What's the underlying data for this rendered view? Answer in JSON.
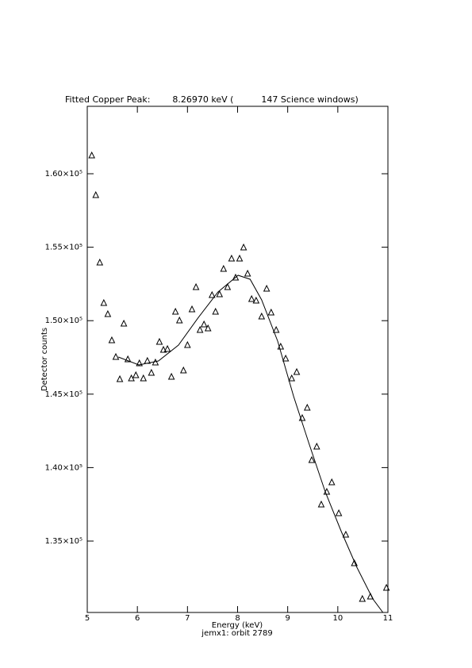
{
  "chart_data": {
    "type": "scatter",
    "title": "Fitted Copper Peak:        8.26970 keV (          147 Science windows)",
    "x_label": "Energy (keV)",
    "subtitle": "jemx1: orbit 2789",
    "y_label": "Detector counts",
    "xlim": [
      5,
      11
    ],
    "xticks": [
      5,
      6,
      7,
      8,
      9,
      10,
      11
    ],
    "ylim": [
      130140,
      164590
    ],
    "yticks": [
      {
        "value": 135000,
        "label": "1.35×10⁵"
      },
      {
        "value": 140000,
        "label": "1.40×10⁵"
      },
      {
        "value": 145000,
        "label": "1.45×10⁵"
      },
      {
        "value": 150000,
        "label": "1.50×10⁵"
      },
      {
        "value": 155000,
        "label": "1.55×10⁵"
      },
      {
        "value": 160000,
        "label": "1.60×10⁵"
      }
    ],
    "grid": false,
    "series": [
      {
        "marker": "triangle",
        "color": "#000000",
        "x": [
          5.09,
          5.17,
          5.25,
          5.33,
          5.41,
          5.49,
          5.57,
          5.65,
          5.73,
          5.81,
          5.88,
          5.97,
          6.04,
          6.12,
          6.2,
          6.28,
          6.36,
          6.44,
          6.52,
          6.6,
          6.68,
          6.76,
          6.84,
          6.92,
          7.0,
          7.09,
          7.17,
          7.25,
          7.33,
          7.41,
          7.49,
          7.56,
          7.64,
          7.72,
          7.8,
          7.88,
          7.96,
          8.04,
          8.12,
          8.2,
          8.28,
          8.37,
          8.48,
          8.58,
          8.67,
          8.77,
          8.86,
          8.96,
          9.08,
          9.18,
          9.29,
          9.39,
          9.48,
          9.58,
          9.67,
          9.78,
          9.88,
          10.02,
          10.16,
          10.33,
          10.49,
          10.65,
          10.97
        ],
        "values": [
          161244,
          158544,
          153954,
          151200,
          150444,
          148662,
          147528,
          146016,
          149796,
          147366,
          146070,
          146286,
          147096,
          146070,
          147258,
          146448,
          147150,
          148554,
          148014,
          148068,
          146178,
          150606,
          150012,
          146610,
          148338,
          150768,
          152280,
          149364,
          149742,
          149472,
          151740,
          150606,
          151794,
          153522,
          152280,
          154224,
          152928,
          154224,
          154980,
          153198,
          151470,
          151362,
          150282,
          152172,
          150552,
          149364,
          148230,
          147420,
          146070,
          146502,
          143370,
          144072,
          140508,
          141426,
          137484,
          138348,
          138996,
          136890,
          135432,
          133488,
          131058,
          131220,
          131814
        ]
      },
      {
        "marker": "line",
        "color": "#000000",
        "x": [
          5.62,
          6.03,
          6.42,
          6.82,
          7.22,
          7.61,
          8.01,
          8.25,
          8.48,
          8.8,
          9.12,
          9.43,
          9.75,
          10.07,
          10.38,
          10.7,
          10.9
        ],
        "values": [
          147528,
          146988,
          147258,
          148338,
          150228,
          151956,
          153090,
          152820,
          151416,
          148608,
          144828,
          141588,
          138348,
          135648,
          133218,
          131058,
          130140
        ]
      }
    ]
  }
}
